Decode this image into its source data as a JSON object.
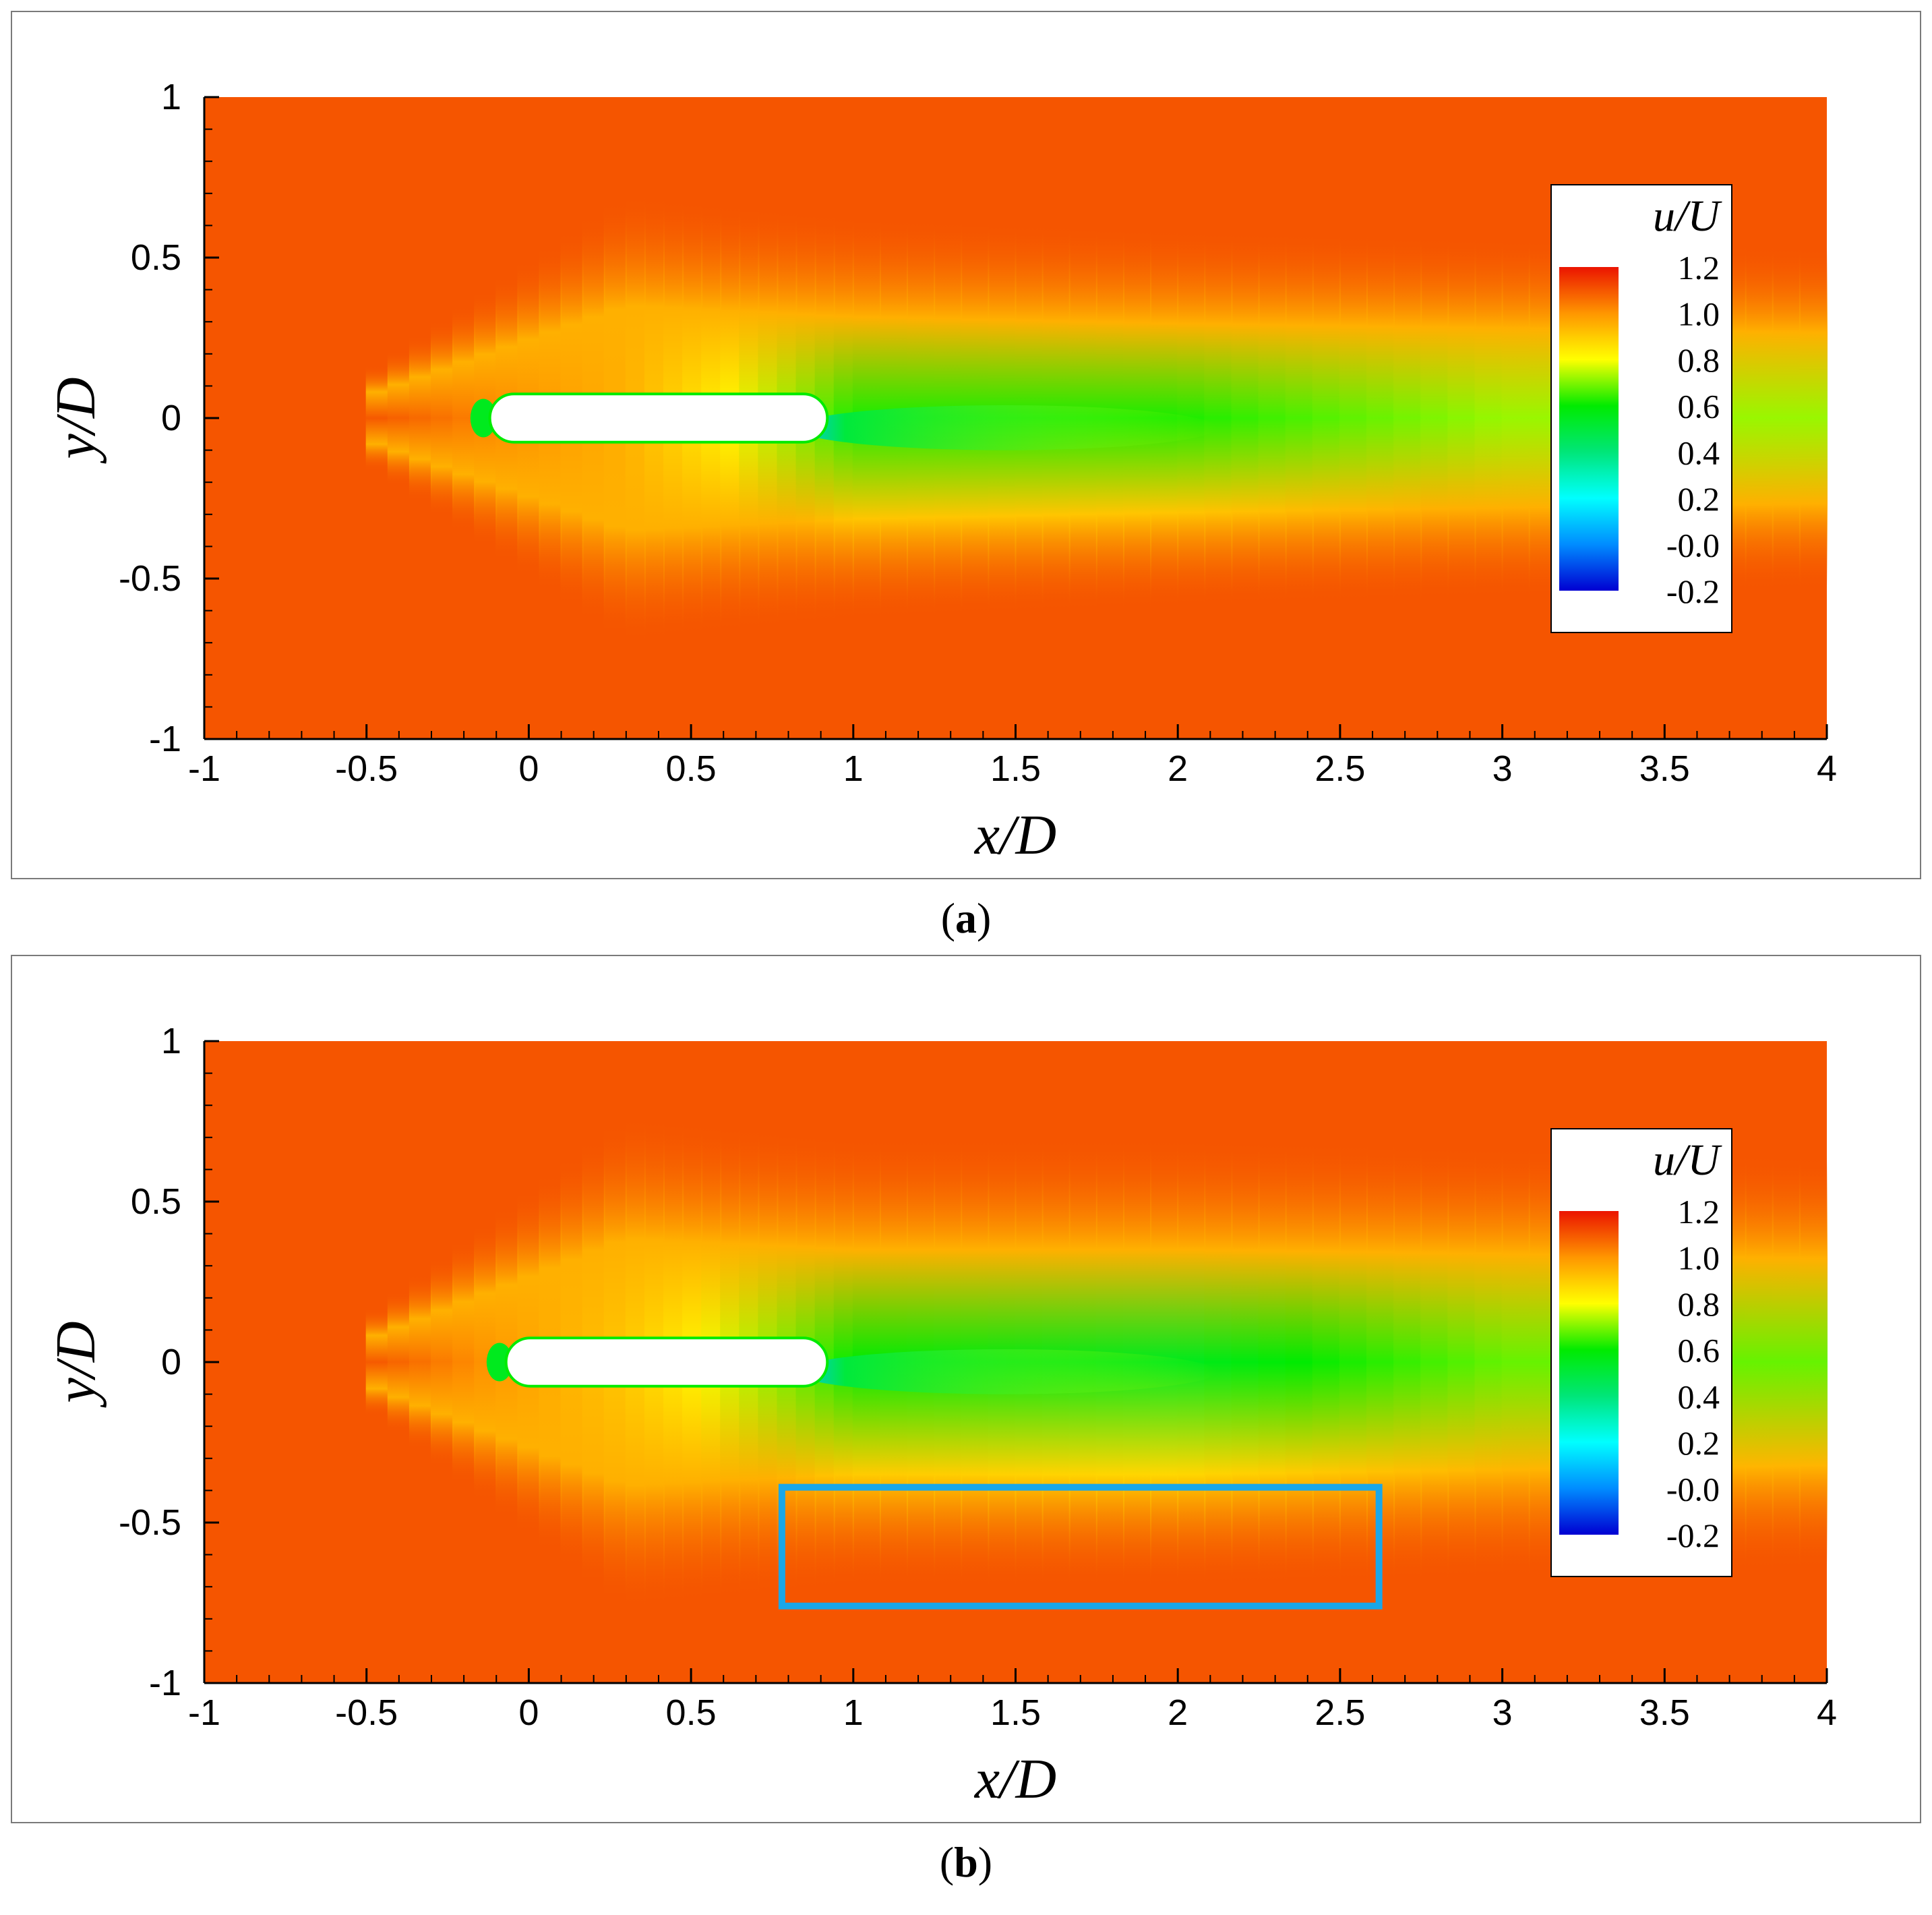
{
  "panels": [
    {
      "caption_letter": "a",
      "chart_data": {
        "type": "heatmap",
        "title": "",
        "xlabel": "x/D",
        "ylabel": "y/D",
        "xlim": [
          -1,
          4
        ],
        "ylim": [
          -1,
          1
        ],
        "x_ticks": [
          -1,
          -0.5,
          0,
          0.5,
          1,
          1.5,
          2,
          2.5,
          3,
          3.5,
          4
        ],
        "x_tick_labels": [
          "-1",
          "-0.5",
          "0",
          "0.5",
          "1",
          "1.5",
          "2",
          "2.5",
          "3",
          "3.5",
          "4"
        ],
        "y_ticks": [
          -1,
          -0.5,
          0,
          0.5,
          1
        ],
        "y_tick_labels": [
          "-1",
          "-0.5",
          "0",
          "0.5",
          "1"
        ],
        "colorbar": {
          "title": "u/U",
          "range": [
            -0.2,
            1.2
          ],
          "levels": [
            1.2,
            1.0,
            0.8,
            0.6,
            0.4,
            0.2,
            -0.0,
            -0.2
          ],
          "labels": [
            "1.2",
            "1.0",
            "0.8",
            "0.6",
            "0.4",
            "0.2",
            "-0.0",
            "-0.2"
          ],
          "placement": "top-right"
        },
        "freestream_value": 1.1,
        "body": {
          "x_start": -0.12,
          "x_end": 0.92,
          "y_half_thickness": 0.075
        },
        "wake_profile": [
          {
            "x": -0.5,
            "center_value": 1.1,
            "half_width": 0.1
          },
          {
            "x": 0.3,
            "center_value": 0.95,
            "half_width": 0.5
          },
          {
            "x": 1.0,
            "center_value": 0.62,
            "half_width": 0.45
          },
          {
            "x": 2.0,
            "center_value": 0.62,
            "half_width": 0.42
          },
          {
            "x": 3.0,
            "center_value": 0.72,
            "half_width": 0.4
          },
          {
            "x": 4.0,
            "center_value": 0.72,
            "half_width": 0.38
          }
        ],
        "highlight_box": null
      }
    },
    {
      "caption_letter": "b",
      "chart_data": {
        "type": "heatmap",
        "title": "",
        "xlabel": "x/D",
        "ylabel": "y/D",
        "xlim": [
          -1,
          4
        ],
        "ylim": [
          -1,
          1
        ],
        "x_ticks": [
          -1,
          -0.5,
          0,
          0.5,
          1,
          1.5,
          2,
          2.5,
          3,
          3.5,
          4
        ],
        "x_tick_labels": [
          "-1",
          "-0.5",
          "0",
          "0.5",
          "1",
          "1.5",
          "2",
          "2.5",
          "3",
          "3.5",
          "4"
        ],
        "y_ticks": [
          -1,
          -0.5,
          0,
          0.5,
          1
        ],
        "y_tick_labels": [
          "-1",
          "-0.5",
          "0",
          "0.5",
          "1"
        ],
        "colorbar": {
          "title": "u/U",
          "range": [
            -0.2,
            1.2
          ],
          "levels": [
            1.2,
            1.0,
            0.8,
            0.6,
            0.4,
            0.2,
            -0.0,
            -0.2
          ],
          "labels": [
            "1.2",
            "1.0",
            "0.8",
            "0.6",
            "0.4",
            "0.2",
            "-0.0",
            "-0.2"
          ],
          "placement": "top-right"
        },
        "freestream_value": 1.1,
        "body": {
          "x_start": -0.07,
          "x_end": 0.92,
          "y_half_thickness": 0.075
        },
        "wake_profile": [
          {
            "x": -0.5,
            "center_value": 1.1,
            "half_width": 0.1
          },
          {
            "x": 0.3,
            "center_value": 0.9,
            "half_width": 0.55
          },
          {
            "x": 1.0,
            "center_value": 0.6,
            "half_width": 0.5
          },
          {
            "x": 2.0,
            "center_value": 0.55,
            "half_width": 0.5
          },
          {
            "x": 3.0,
            "center_value": 0.68,
            "half_width": 0.48
          },
          {
            "x": 4.0,
            "center_value": 0.68,
            "half_width": 0.46
          }
        ],
        "highlight_box": {
          "x": [
            0.78,
            2.62
          ],
          "y": [
            -0.76,
            -0.39
          ],
          "color": "#1aa7e8"
        }
      }
    }
  ]
}
